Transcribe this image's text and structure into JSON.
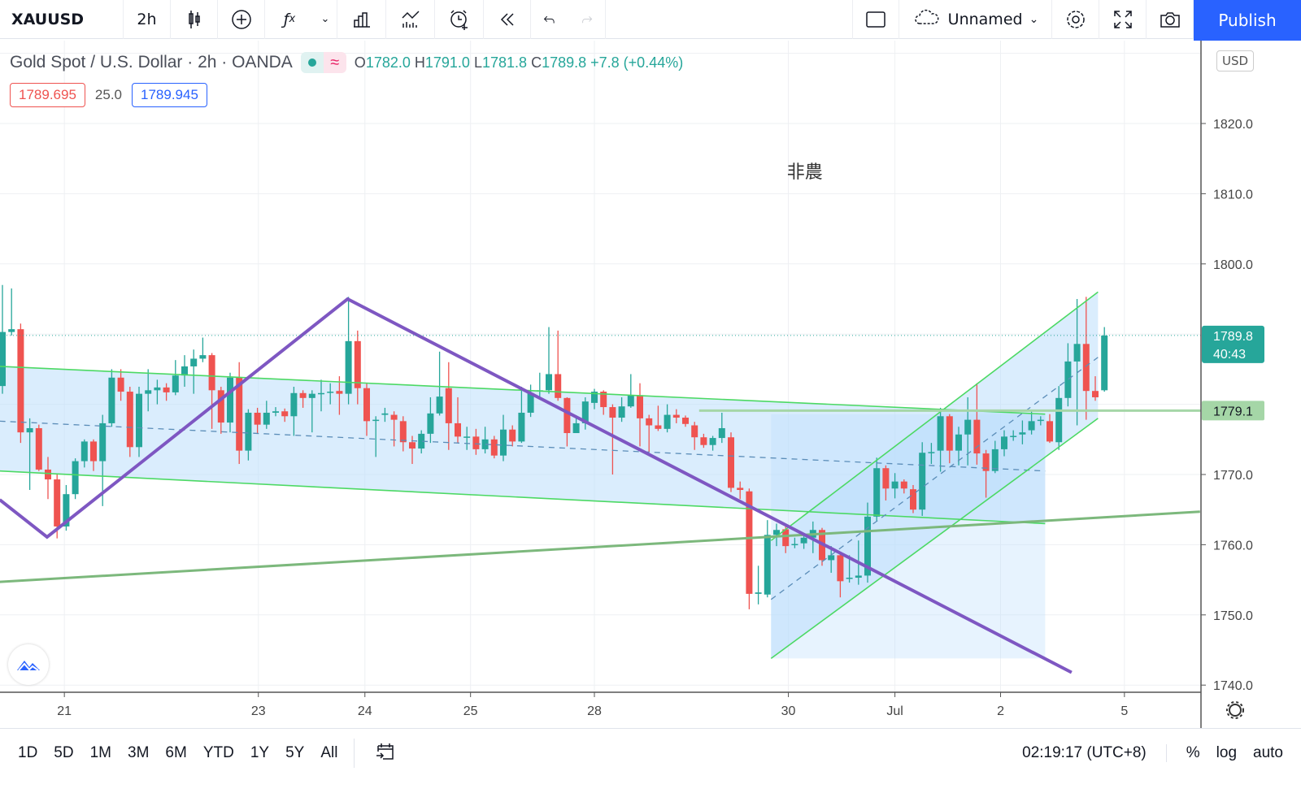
{
  "toolbar": {
    "symbol": "XAUUSD",
    "interval": "2h",
    "layout_name": "Unnamed",
    "publish_label": "Publish",
    "icons": [
      "candles-icon",
      "plus-circle-icon",
      "indicators-fx-icon",
      "chevron-down-icon",
      "bar-chart-icon",
      "compare-icon",
      "alert-clock-icon",
      "replay-icon",
      "undo-icon",
      "redo-icon",
      "rectangle-icon",
      "cloud-icon",
      "gear-icon",
      "fullscreen-icon",
      "camera-icon"
    ]
  },
  "legend": {
    "title": "Gold Spot / U.S. Dollar · 2h · OANDA",
    "o_label": "O",
    "o": "1782.0",
    "h_label": "H",
    "h": "1791.0",
    "l_label": "L",
    "l": "1781.8",
    "c_label": "C",
    "c": "1789.8",
    "change": "+7.8 (+0.44%)",
    "status_symbol": "≈"
  },
  "quotes": {
    "sell": "1789.695",
    "spread": "25.0",
    "buy": "1789.945"
  },
  "price_axis": {
    "currency": "USD",
    "ticks": [
      "1820.0",
      "1810.0",
      "1800.0",
      "1770.0",
      "1760.0",
      "1750.0",
      "1740.0"
    ],
    "tick_values": [
      1820,
      1810,
      1800,
      1770,
      1760,
      1750,
      1740
    ],
    "current_price": "1789.8",
    "countdown": "40:43",
    "line_label": "1779.1"
  },
  "time_axis": {
    "labels": [
      "21",
      "23",
      "24",
      "25",
      "28",
      "30",
      "Jul",
      "2",
      "5"
    ],
    "label_bar_index": [
      6.8,
      28.1,
      39.8,
      51.4,
      65.0,
      86.3,
      98.0,
      109.6,
      123.2
    ]
  },
  "annotation_text": "非農",
  "bottom": {
    "ranges": [
      "1D",
      "5D",
      "1M",
      "3M",
      "6M",
      "YTD",
      "1Y",
      "5Y",
      "All"
    ],
    "clock": "02:19:17 (UTC+8)",
    "percent": "%",
    "log": "log",
    "auto": "auto"
  },
  "colors": {
    "up": "#26a69a",
    "down": "#ef5350",
    "accent": "#2962ff",
    "trend": "#7e57c2",
    "channel": "#4cd964",
    "channel_fill": "#bbdefb"
  },
  "chart_data": {
    "type": "candlestick",
    "price_range": [
      1738,
      1832
    ],
    "candles_ohlc": [
      [
        1782.6,
        1797.0,
        1781.5,
        1790.3
      ],
      [
        1790.3,
        1796.5,
        1789.8,
        1790.7
      ],
      [
        1790.7,
        1791.5,
        1774.5,
        1776.0
      ],
      [
        1776.0,
        1778.0,
        1767.8,
        1776.6
      ],
      [
        1776.6,
        1777.1,
        1770.5,
        1770.7
      ],
      [
        1770.7,
        1772.5,
        1766.5,
        1769.3
      ],
      [
        1769.3,
        1770.0,
        1760.9,
        1762.6
      ],
      [
        1762.6,
        1768.5,
        1762.0,
        1767.2
      ],
      [
        1767.2,
        1772.3,
        1766.5,
        1771.9
      ],
      [
        1771.9,
        1775.0,
        1771.0,
        1774.7
      ],
      [
        1774.7,
        1775.0,
        1770.5,
        1771.9
      ],
      [
        1771.9,
        1778.5,
        1765.5,
        1777.3
      ],
      [
        1777.3,
        1785.0,
        1776.8,
        1783.8
      ],
      [
        1783.8,
        1785.0,
        1780.5,
        1781.8
      ],
      [
        1781.8,
        1782.5,
        1772.5,
        1773.9
      ],
      [
        1773.9,
        1782.5,
        1772.5,
        1781.5
      ],
      [
        1781.5,
        1785.0,
        1779.0,
        1782.0
      ],
      [
        1782.0,
        1783.5,
        1780.0,
        1782.4
      ],
      [
        1782.4,
        1783.0,
        1780.5,
        1781.7
      ],
      [
        1781.7,
        1786.3,
        1781.3,
        1784.1
      ],
      [
        1784.1,
        1787.0,
        1782.5,
        1785.4
      ],
      [
        1785.4,
        1787.8,
        1781.5,
        1786.5
      ],
      [
        1786.5,
        1789.5,
        1786.0,
        1787.0
      ],
      [
        1787.0,
        1787.3,
        1776.5,
        1782.0
      ],
      [
        1782.0,
        1782.5,
        1775.8,
        1777.4
      ],
      [
        1777.4,
        1784.5,
        1776.0,
        1783.8
      ],
      [
        1783.8,
        1786.0,
        1771.5,
        1773.4
      ],
      [
        1773.4,
        1779.3,
        1772.0,
        1778.8
      ],
      [
        1778.8,
        1779.5,
        1775.8,
        1777.1
      ],
      [
        1777.1,
        1780.5,
        1776.5,
        1778.8
      ],
      [
        1778.8,
        1779.6,
        1778.3,
        1779.0
      ],
      [
        1779.0,
        1779.4,
        1777.5,
        1778.3
      ],
      [
        1778.3,
        1782.5,
        1775.5,
        1781.6
      ],
      [
        1781.6,
        1782.0,
        1779.5,
        1780.9
      ],
      [
        1780.9,
        1782.0,
        1776.0,
        1781.5
      ],
      [
        1781.5,
        1783.5,
        1779.0,
        1781.6
      ],
      [
        1781.7,
        1783.0,
        1780.0,
        1781.8
      ],
      [
        1781.9,
        1784.0,
        1778.5,
        1781.5
      ],
      [
        1781.5,
        1795.3,
        1780.0,
        1789.0
      ],
      [
        1789.0,
        1790.5,
        1780.0,
        1782.3
      ],
      [
        1782.3,
        1783.0,
        1775.5,
        1777.6
      ],
      [
        1777.8,
        1778.3,
        1772.5,
        1777.8
      ],
      [
        1778.5,
        1779.5,
        1777.5,
        1778.7
      ],
      [
        1778.5,
        1779.0,
        1774.0,
        1777.8
      ],
      [
        1777.6,
        1778.3,
        1773.3,
        1774.6
      ],
      [
        1774.6,
        1775.5,
        1771.5,
        1773.7
      ],
      [
        1773.7,
        1776.3,
        1773.0,
        1775.8
      ],
      [
        1775.8,
        1781.0,
        1774.5,
        1778.7
      ],
      [
        1778.7,
        1787.5,
        1778.4,
        1781.1
      ],
      [
        1782.3,
        1786.0,
        1773.5,
        1777.3
      ],
      [
        1777.3,
        1781.0,
        1774.5,
        1775.4
      ],
      [
        1775.4,
        1776.8,
        1773.5,
        1775.4
      ],
      [
        1775.4,
        1776.5,
        1772.8,
        1773.6
      ],
      [
        1773.6,
        1776.8,
        1773.0,
        1775.0
      ],
      [
        1775.0,
        1775.5,
        1772.3,
        1772.7
      ],
      [
        1772.7,
        1778.5,
        1771.9,
        1776.4
      ],
      [
        1776.4,
        1777.0,
        1774.0,
        1774.7
      ],
      [
        1774.7,
        1782.5,
        1774.5,
        1778.8
      ],
      [
        1778.8,
        1782.8,
        1778.2,
        1781.6
      ],
      [
        1781.9,
        1784.5,
        1780.8,
        1782.0
      ],
      [
        1782.0,
        1791.0,
        1781.5,
        1784.3
      ],
      [
        1784.3,
        1790.5,
        1780.5,
        1780.9
      ],
      [
        1780.9,
        1781.0,
        1774.0,
        1775.9
      ],
      [
        1775.9,
        1778.2,
        1776.5,
        1777.3
      ],
      [
        1777.3,
        1781.0,
        1776.4,
        1780.4
      ],
      [
        1780.2,
        1782.2,
        1779.3,
        1781.8
      ],
      [
        1781.8,
        1782.0,
        1778.5,
        1779.6
      ],
      [
        1779.6,
        1780.0,
        1770.0,
        1778.1
      ],
      [
        1778.1,
        1781.0,
        1777.5,
        1779.7
      ],
      [
        1779.7,
        1784.3,
        1779.5,
        1781.3
      ],
      [
        1781.3,
        1783.0,
        1774.0,
        1778.0
      ],
      [
        1778.0,
        1778.5,
        1773.2,
        1777.0
      ],
      [
        1777.0,
        1779.8,
        1776.2,
        1776.5
      ],
      [
        1776.5,
        1780.0,
        1776.0,
        1778.5
      ],
      [
        1778.5,
        1779.3,
        1777.3,
        1778.1
      ],
      [
        1778.1,
        1778.4,
        1776.8,
        1777.2
      ],
      [
        1777.0,
        1777.5,
        1773.5,
        1775.3
      ],
      [
        1775.3,
        1775.8,
        1773.8,
        1774.2
      ],
      [
        1774.2,
        1775.5,
        1773.4,
        1775.2
      ],
      [
        1775.2,
        1778.8,
        1774.5,
        1776.6
      ],
      [
        1775.3,
        1776.0,
        1767.5,
        1768.1
      ],
      [
        1768.1,
        1769.0,
        1766.5,
        1767.8
      ],
      [
        1767.6,
        1768.0,
        1750.8,
        1753.0
      ],
      [
        1753.0,
        1757.0,
        1751.5,
        1753.2
      ],
      [
        1752.9,
        1763.5,
        1752.5,
        1761.4
      ],
      [
        1761.4,
        1763.0,
        1759.8,
        1762.1
      ],
      [
        1762.2,
        1762.6,
        1758.8,
        1759.8
      ],
      [
        1760.0,
        1761.0,
        1759.5,
        1760.1
      ],
      [
        1760.2,
        1761.6,
        1759.4,
        1761.0
      ],
      [
        1761.0,
        1763.3,
        1758.8,
        1762.1
      ],
      [
        1762.1,
        1762.4,
        1757.0,
        1757.8
      ],
      [
        1757.8,
        1759.8,
        1756.0,
        1758.5
      ],
      [
        1758.5,
        1758.8,
        1752.5,
        1754.8
      ],
      [
        1755.2,
        1758.5,
        1754.6,
        1755.3
      ],
      [
        1755.3,
        1760.6,
        1754.3,
        1755.6
      ],
      [
        1755.6,
        1766.0,
        1754.6,
        1764.0
      ],
      [
        1764.0,
        1772.4,
        1763.3,
        1770.9
      ],
      [
        1770.9,
        1771.3,
        1766.3,
        1768.0
      ],
      [
        1768.0,
        1770.2,
        1766.6,
        1769.0
      ],
      [
        1769.0,
        1769.3,
        1767.3,
        1768.0
      ],
      [
        1767.9,
        1768.5,
        1764.5,
        1765.0
      ],
      [
        1765.0,
        1774.6,
        1764.1,
        1773.1
      ],
      [
        1773.1,
        1774.5,
        1771.5,
        1773.2
      ],
      [
        1773.4,
        1779.5,
        1770.4,
        1778.3
      ],
      [
        1778.3,
        1778.6,
        1771.6,
        1773.4
      ],
      [
        1773.4,
        1776.8,
        1771.3,
        1775.7
      ],
      [
        1775.7,
        1781.0,
        1771.3,
        1777.8
      ],
      [
        1777.8,
        1783.0,
        1771.4,
        1773.0
      ],
      [
        1773.0,
        1773.5,
        1766.7,
        1770.5
      ],
      [
        1770.5,
        1774.8,
        1770.2,
        1773.6
      ],
      [
        1773.6,
        1776.3,
        1772.6,
        1775.4
      ],
      [
        1775.5,
        1776.3,
        1774.8,
        1775.5
      ],
      [
        1775.7,
        1777.7,
        1774.3,
        1776.0
      ],
      [
        1776.3,
        1779.2,
        1775.7,
        1777.6
      ],
      [
        1777.8,
        1778.3,
        1777.0,
        1777.8
      ],
      [
        1777.6,
        1778.6,
        1774.5,
        1774.7
      ],
      [
        1774.6,
        1782.6,
        1773.5,
        1780.9
      ],
      [
        1780.9,
        1788.7,
        1779.7,
        1786.1
      ],
      [
        1786.1,
        1795.0,
        1777.0,
        1788.6
      ],
      [
        1788.6,
        1795.3,
        1777.8,
        1781.9
      ],
      [
        1781.9,
        1784.0,
        1780.5,
        1781.0
      ],
      [
        1782.0,
        1791.0,
        1781.8,
        1789.8
      ]
    ],
    "drawings": {
      "zigzag": [
        [
          -0.3,
          1766.4
        ],
        [
          4.9,
          1761.1
        ],
        [
          37.9,
          1795.0
        ],
        [
          117.4,
          1741.8
        ]
      ],
      "channel1_upper": [
        [
          -0.3,
          1785.4
        ],
        [
          114.5,
          1778.6
        ]
      ],
      "channel1_mid": [
        [
          -0.3,
          1777.6
        ],
        [
          114.5,
          1770.5
        ]
      ],
      "channel1_lower": [
        [
          -0.3,
          1770.5
        ],
        [
          114.5,
          1763.0
        ]
      ],
      "support_line": [
        [
          -0.3,
          1754.7
        ],
        [
          131.5,
          1764.7
        ]
      ],
      "horizontal_level": 1779.1,
      "channel2_lower": [
        [
          84.4,
          1743.8
        ],
        [
          120.3,
          1778.0
        ]
      ],
      "channel2_mid": [
        [
          84.4,
          1752.2
        ],
        [
          120.3,
          1786.7
        ]
      ],
      "channel2_upper": [
        [
          84.4,
          1760.6
        ],
        [
          120.3,
          1796.0
        ]
      ],
      "text_anchor": [
        88.1,
        1813.2
      ]
    }
  }
}
